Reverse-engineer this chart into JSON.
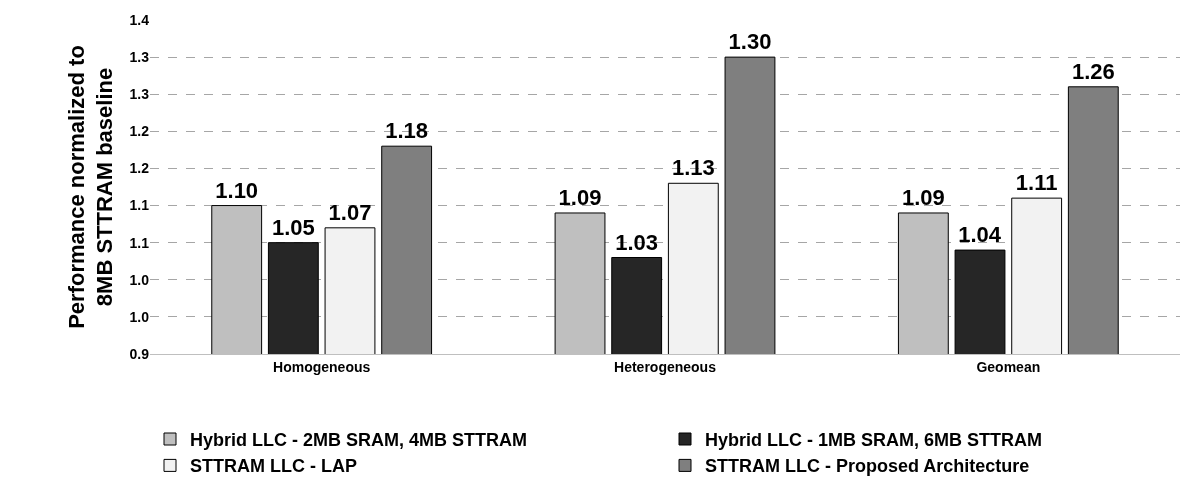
{
  "chart_data": {
    "type": "bar",
    "ylabel": "Performance normalized to 8MB STTRAM baseline",
    "categories": [
      "Homogeneous",
      "Heterogeneous",
      "Geomean"
    ],
    "series": [
      {
        "name": "Hybrid LLC - 2MB SRAM, 4MB STTRAM",
        "color": "#bfbfbf",
        "values": [
          1.1,
          1.09,
          1.09
        ],
        "value_labels": [
          "1.10",
          "1.09",
          "1.09"
        ]
      },
      {
        "name": "Hybrid LLC - 1MB SRAM, 6MB STTRAM",
        "color": "#262626",
        "values": [
          1.05,
          1.03,
          1.04
        ],
        "value_labels": [
          "1.05",
          "1.03",
          "1.04"
        ]
      },
      {
        "name": "STTRAM LLC - LAP",
        "color": "#f2f2f2",
        "values": [
          1.07,
          1.13,
          1.11
        ],
        "value_labels": [
          "1.07",
          "1.13",
          "1.11"
        ]
      },
      {
        "name": "STTRAM LLC - Proposed Architecture",
        "color": "#7f7f7f",
        "values": [
          1.18,
          1.3,
          1.26
        ],
        "value_labels": [
          "1.18",
          "1.30",
          "1.26"
        ]
      }
    ],
    "ylim": [
      0.9,
      1.35
    ],
    "yticks": [
      {
        "value": 0.9,
        "label": "0.9"
      },
      {
        "value": 0.95,
        "label": "1.0"
      },
      {
        "value": 1.0,
        "label": "1.0"
      },
      {
        "value": 1.05,
        "label": "1.1"
      },
      {
        "value": 1.1,
        "label": "1.1"
      },
      {
        "value": 1.15,
        "label": "1.2"
      },
      {
        "value": 1.2,
        "label": "1.2"
      },
      {
        "value": 1.25,
        "label": "1.3"
      },
      {
        "value": 1.3,
        "label": "1.3"
      },
      {
        "value": 1.35,
        "label": "1.4"
      }
    ],
    "grid": "y",
    "legend": "bottom"
  }
}
